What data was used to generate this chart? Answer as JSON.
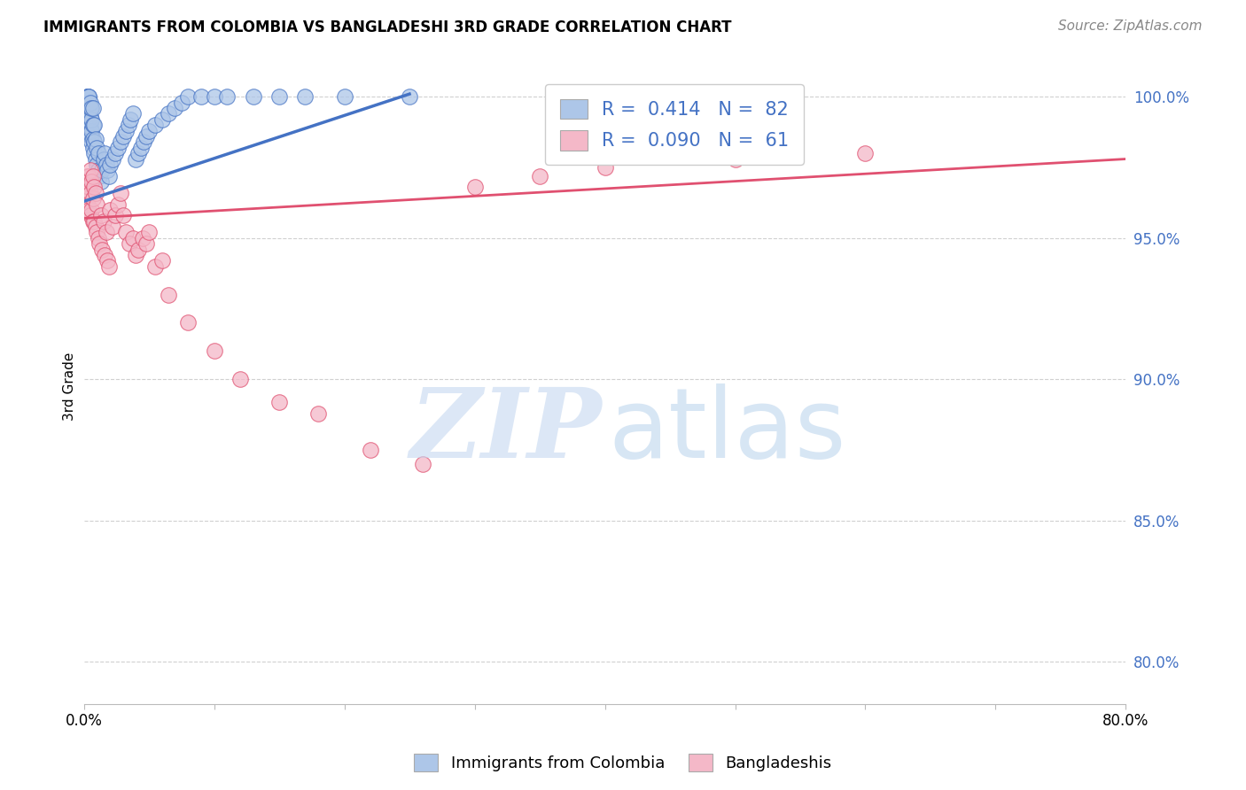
{
  "title": "IMMIGRANTS FROM COLOMBIA VS BANGLADESHI 3RD GRADE CORRELATION CHART",
  "source": "Source: ZipAtlas.com",
  "ylabel": "3rd Grade",
  "y_ticks": [
    0.8,
    0.85,
    0.9,
    0.95,
    1.0
  ],
  "y_tick_labels": [
    "80.0%",
    "85.0%",
    "90.0%",
    "95.0%",
    "100.0%"
  ],
  "legend_blue_r": "R =  0.414",
  "legend_blue_n": "N =  82",
  "legend_pink_r": "R =  0.090",
  "legend_pink_n": "N =  61",
  "blue_color": "#adc6e8",
  "blue_line_color": "#4472c4",
  "pink_color": "#f4b8c8",
  "pink_line_color": "#e05070",
  "watermark_zip_color": "#c5d8f0",
  "watermark_atlas_color": "#a8c8e8",
  "blue_scatter_x": [
    0.001,
    0.001,
    0.002,
    0.002,
    0.002,
    0.002,
    0.003,
    0.003,
    0.003,
    0.003,
    0.003,
    0.003,
    0.003,
    0.004,
    0.004,
    0.004,
    0.004,
    0.004,
    0.004,
    0.004,
    0.004,
    0.005,
    0.005,
    0.005,
    0.005,
    0.005,
    0.005,
    0.006,
    0.006,
    0.006,
    0.006,
    0.007,
    0.007,
    0.007,
    0.007,
    0.008,
    0.008,
    0.008,
    0.009,
    0.009,
    0.01,
    0.01,
    0.011,
    0.011,
    0.012,
    0.013,
    0.014,
    0.015,
    0.016,
    0.017,
    0.018,
    0.019,
    0.02,
    0.022,
    0.024,
    0.026,
    0.028,
    0.03,
    0.032,
    0.034,
    0.036,
    0.038,
    0.04,
    0.042,
    0.044,
    0.046,
    0.048,
    0.05,
    0.055,
    0.06,
    0.065,
    0.07,
    0.075,
    0.08,
    0.09,
    0.1,
    0.11,
    0.13,
    0.15,
    0.17,
    0.2,
    0.25
  ],
  "blue_scatter_y": [
    0.996,
    0.998,
    0.993,
    0.995,
    0.998,
    1.0,
    0.99,
    0.992,
    0.994,
    0.996,
    0.998,
    1.0,
    1.0,
    0.988,
    0.99,
    0.992,
    0.994,
    0.996,
    0.998,
    1.0,
    1.0,
    0.986,
    0.989,
    0.991,
    0.993,
    0.996,
    0.998,
    0.984,
    0.988,
    0.992,
    0.996,
    0.982,
    0.985,
    0.99,
    0.996,
    0.98,
    0.984,
    0.99,
    0.978,
    0.985,
    0.976,
    0.982,
    0.974,
    0.98,
    0.972,
    0.97,
    0.974,
    0.978,
    0.98,
    0.976,
    0.974,
    0.972,
    0.976,
    0.978,
    0.98,
    0.982,
    0.984,
    0.986,
    0.988,
    0.99,
    0.992,
    0.994,
    0.978,
    0.98,
    0.982,
    0.984,
    0.986,
    0.988,
    0.99,
    0.992,
    0.994,
    0.996,
    0.998,
    1.0,
    1.0,
    1.0,
    1.0,
    1.0,
    1.0,
    1.0,
    1.0,
    1.0
  ],
  "pink_scatter_x": [
    0.001,
    0.002,
    0.002,
    0.003,
    0.003,
    0.003,
    0.004,
    0.004,
    0.004,
    0.005,
    0.005,
    0.005,
    0.006,
    0.006,
    0.007,
    0.007,
    0.007,
    0.008,
    0.008,
    0.009,
    0.009,
    0.01,
    0.01,
    0.011,
    0.012,
    0.013,
    0.014,
    0.015,
    0.016,
    0.017,
    0.018,
    0.019,
    0.02,
    0.022,
    0.024,
    0.026,
    0.028,
    0.03,
    0.032,
    0.035,
    0.038,
    0.04,
    0.042,
    0.045,
    0.048,
    0.05,
    0.055,
    0.06,
    0.065,
    0.08,
    0.1,
    0.12,
    0.15,
    0.18,
    0.22,
    0.26,
    0.3,
    0.35,
    0.4,
    0.5,
    0.6
  ],
  "pink_scatter_y": [
    0.97,
    0.972,
    0.968,
    0.966,
    0.964,
    0.962,
    0.972,
    0.968,
    0.96,
    0.974,
    0.966,
    0.958,
    0.97,
    0.96,
    0.972,
    0.964,
    0.956,
    0.968,
    0.956,
    0.966,
    0.954,
    0.962,
    0.952,
    0.95,
    0.948,
    0.958,
    0.946,
    0.956,
    0.944,
    0.952,
    0.942,
    0.94,
    0.96,
    0.954,
    0.958,
    0.962,
    0.966,
    0.958,
    0.952,
    0.948,
    0.95,
    0.944,
    0.946,
    0.95,
    0.948,
    0.952,
    0.94,
    0.942,
    0.93,
    0.92,
    0.91,
    0.9,
    0.892,
    0.888,
    0.875,
    0.87,
    0.968,
    0.972,
    0.975,
    0.978,
    0.98
  ],
  "blue_line_x": [
    0.0,
    0.25
  ],
  "blue_line_y": [
    0.963,
    1.001
  ],
  "pink_line_x": [
    0.0,
    0.8
  ],
  "pink_line_y": [
    0.957,
    0.978
  ],
  "xlim": [
    0.0,
    0.8
  ],
  "ylim": [
    0.785,
    1.01
  ]
}
